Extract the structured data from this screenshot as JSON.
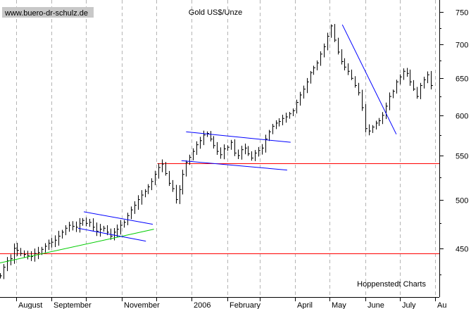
{
  "chart_data": {
    "type": "bar",
    "title": "Gold US$/Unze",
    "watermark": "www.buero-dr-schulz.de",
    "source": "Hoppenstedt Charts",
    "y_axis_side": "right",
    "grid": "vertical dashed (monthly)",
    "ylim": [
      405,
      770
    ],
    "y_ticks": [
      450,
      500,
      550,
      600,
      650,
      700,
      750
    ],
    "y_tick_labels": [
      "450",
      "500",
      "550",
      "600",
      "650",
      "700",
      "750"
    ],
    "month_labels": [
      "August",
      "September",
      "November",
      "2006",
      "February",
      "April",
      "May",
      "June",
      "July",
      "Au"
    ],
    "horizontal_lines": [
      {
        "y": 445,
        "color": "#ff0000",
        "start": "2005-07-18"
      },
      {
        "y": 541,
        "color": "#ff0000",
        "start": "2005-12-02"
      }
    ],
    "trend_lines": [
      {
        "color": "#00cc00",
        "from": [
          "2005-07-18",
          436
        ],
        "to": [
          "2005-11-29",
          469
        ]
      },
      {
        "color": "#0000ff",
        "from": [
          "2005-09-29",
          487
        ],
        "to": [
          "2005-11-28",
          474
        ]
      },
      {
        "color": "#0000ff",
        "from": [
          "2005-09-24",
          470
        ],
        "to": [
          "2005-11-22",
          457
        ]
      },
      {
        "color": "#0000ff",
        "from": [
          "2005-12-27",
          579
        ],
        "to": [
          "2006-03-28",
          566
        ]
      },
      {
        "color": "#0000ff",
        "from": [
          "2005-12-23",
          544
        ],
        "to": [
          "2006-03-25",
          533
        ]
      },
      {
        "color": "#0000ff",
        "from": [
          "2006-05-12",
          730
        ],
        "to": [
          "2006-06-28",
          576
        ]
      }
    ],
    "series": [
      {
        "color": "#000000",
        "dates": [
          "2005-07-18",
          "2005-07-21",
          "2005-07-24",
          "2005-07-27",
          "2005-07-30",
          "2005-08-02",
          "2005-08-05",
          "2005-08-08",
          "2005-08-11",
          "2005-08-14",
          "2005-08-17",
          "2005-08-20",
          "2005-08-23",
          "2005-08-26",
          "2005-08-29",
          "2005-09-01",
          "2005-09-04",
          "2005-09-07",
          "2005-09-10",
          "2005-09-13",
          "2005-09-16",
          "2005-09-19",
          "2005-09-22",
          "2005-09-25",
          "2005-09-28",
          "2005-10-01",
          "2005-10-04",
          "2005-10-07",
          "2005-10-10",
          "2005-10-13",
          "2005-10-16",
          "2005-10-19",
          "2005-10-22",
          "2005-10-25",
          "2005-10-28",
          "2005-10-31",
          "2005-11-03",
          "2005-11-06",
          "2005-11-09",
          "2005-11-12",
          "2005-11-15",
          "2005-11-18",
          "2005-11-21",
          "2005-11-24",
          "2005-11-27",
          "2005-11-30",
          "2005-12-03",
          "2005-12-06",
          "2005-12-09",
          "2005-12-12",
          "2005-12-15",
          "2005-12-18",
          "2005-12-21",
          "2005-12-24",
          "2005-12-27",
          "2005-12-30",
          "2006-01-02",
          "2006-01-05",
          "2006-01-08",
          "2006-01-11",
          "2006-01-14",
          "2006-01-17",
          "2006-01-20",
          "2006-01-23",
          "2006-01-26",
          "2006-01-29",
          "2006-02-01",
          "2006-02-04",
          "2006-02-07",
          "2006-02-10",
          "2006-02-13",
          "2006-02-16",
          "2006-02-19",
          "2006-02-22",
          "2006-02-25",
          "2006-02-28",
          "2006-03-03",
          "2006-03-06",
          "2006-03-09",
          "2006-03-12",
          "2006-03-15",
          "2006-03-18",
          "2006-03-21",
          "2006-03-24",
          "2006-03-27",
          "2006-03-30",
          "2006-04-02",
          "2006-04-05",
          "2006-04-08",
          "2006-04-11",
          "2006-04-14",
          "2006-04-17",
          "2006-04-20",
          "2006-04-23",
          "2006-04-26",
          "2006-04-29",
          "2006-05-02",
          "2006-05-05",
          "2006-05-08",
          "2006-05-11",
          "2006-05-14",
          "2006-05-17",
          "2006-05-20",
          "2006-05-23",
          "2006-05-26",
          "2006-05-29",
          "2006-06-01",
          "2006-06-04",
          "2006-06-07",
          "2006-06-10",
          "2006-06-13",
          "2006-06-16",
          "2006-06-19",
          "2006-06-22",
          "2006-06-25",
          "2006-06-28",
          "2006-07-01",
          "2006-07-04",
          "2006-07-07",
          "2006-07-10",
          "2006-07-13",
          "2006-07-16",
          "2006-07-19",
          "2006-07-22",
          "2006-07-25",
          "2006-07-28"
        ],
        "close": [
          424,
          432,
          438,
          440,
          450,
          448,
          445,
          444,
          443,
          442,
          445,
          446,
          449,
          452,
          455,
          456,
          458,
          462,
          466,
          470,
          473,
          472,
          471,
          475,
          478,
          475,
          476,
          471,
          467,
          469,
          470,
          466,
          462,
          466,
          469,
          473,
          476,
          483,
          489,
          494,
          500,
          505,
          509,
          514,
          520,
          528,
          536,
          540,
          529,
          518,
          512,
          500,
          511,
          528,
          542,
          548,
          555,
          563,
          568,
          575,
          577,
          570,
          562,
          555,
          551,
          558,
          560,
          566,
          553,
          550,
          557,
          559,
          552,
          547,
          553,
          556,
          559,
          570,
          579,
          586,
          590,
          592,
          596,
          598,
          602,
          606,
          617,
          627,
          635,
          645,
          658,
          665,
          672,
          685,
          696,
          712,
          728,
          706,
          688,
          674,
          666,
          660,
          650,
          640,
          630,
          610,
          583,
          580,
          585,
          590,
          593,
          600,
          612,
          625,
          632,
          645,
          652,
          660,
          657,
          645,
          635,
          625,
          640,
          648,
          655,
          640
        ]
      }
    ]
  }
}
